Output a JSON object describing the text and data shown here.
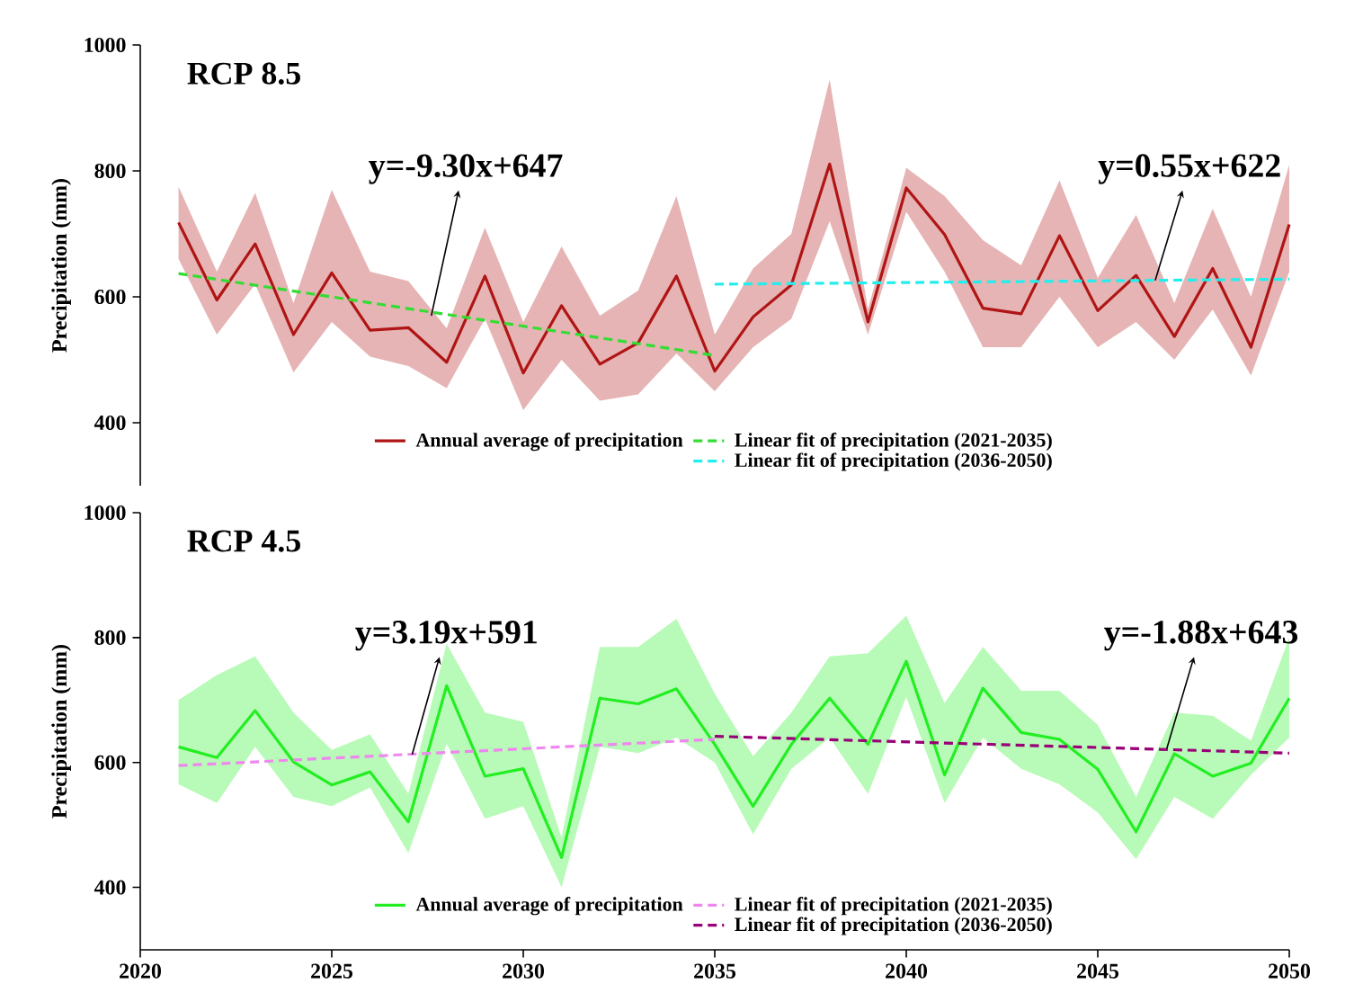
{
  "chart_data": [
    {
      "type": "line",
      "title": "RCP 8.5",
      "ylabel": "Precipitation (mm)",
      "xlim": [
        2020,
        2050
      ],
      "xticks": [
        2020,
        2025,
        2030,
        2035,
        2040,
        2045,
        2050
      ],
      "ylim": [
        300,
        1000
      ],
      "yticks": [
        400,
        600,
        800,
        1000
      ],
      "tick_labels": "y",
      "legend": "bottom",
      "x": [
        2021,
        2022,
        2023,
        2024,
        2025,
        2026,
        2027,
        2028,
        2029,
        2030,
        2031,
        2032,
        2033,
        2034,
        2035,
        2036,
        2037,
        2038,
        2039,
        2040,
        2041,
        2042,
        2043,
        2044,
        2045,
        2046,
        2047,
        2048,
        2049,
        2050
      ],
      "series": [
        {
          "name": "Annual average of precipitation",
          "color": "#b01515",
          "line_style": "solid",
          "values": [
            718,
            595,
            684,
            540,
            638,
            547,
            551,
            496,
            633,
            479,
            586,
            493,
            527,
            633,
            482,
            568,
            619,
            811,
            560,
            773,
            699,
            582,
            573,
            697,
            578,
            634,
            537,
            645,
            520,
            715
          ],
          "upper": [
            775,
            640,
            765,
            590,
            770,
            640,
            625,
            550,
            710,
            560,
            680,
            570,
            610,
            760,
            540,
            645,
            700,
            945,
            580,
            805,
            760,
            690,
            650,
            785,
            630,
            730,
            590,
            740,
            600,
            810
          ],
          "lower": [
            660,
            540,
            620,
            480,
            560,
            505,
            490,
            455,
            565,
            420,
            500,
            435,
            445,
            510,
            450,
            520,
            565,
            720,
            540,
            735,
            640,
            520,
            520,
            600,
            520,
            560,
            500,
            580,
            475,
            640
          ]
        },
        {
          "name": "Linear fit of precipitation (2021-2035)",
          "color": "#33dd33",
          "line_style": "dashed",
          "x": [
            2021,
            2035
          ],
          "values": [
            637,
            507
          ]
        },
        {
          "name": "Linear fit of precipitation (2036-2050)",
          "color": "#22eeee",
          "line_style": "dashed",
          "x": [
            2035,
            2050
          ],
          "values": [
            620,
            628
          ]
        }
      ],
      "annotations": [
        {
          "text": "y=-9.30x+647",
          "x": 2027.6,
          "y": 570
        },
        {
          "text": "y=0.55x+622",
          "x": 2046.5,
          "y": 626
        }
      ]
    },
    {
      "type": "line",
      "title": "RCP 4.5",
      "ylabel": "Precipitation (mm)",
      "xlim": [
        2020,
        2050
      ],
      "xticks": [
        2020,
        2025,
        2030,
        2035,
        2040,
        2045,
        2050
      ],
      "ylim": [
        300,
        1000
      ],
      "yticks": [
        400,
        600,
        800,
        1000
      ],
      "legend": "bottom",
      "x": [
        2021,
        2022,
        2023,
        2024,
        2025,
        2026,
        2027,
        2028,
        2029,
        2030,
        2031,
        2032,
        2033,
        2034,
        2035,
        2036,
        2037,
        2038,
        2039,
        2040,
        2041,
        2042,
        2043,
        2044,
        2045,
        2046,
        2047,
        2048,
        2049,
        2050
      ],
      "series": [
        {
          "name": "Annual average of precipitation",
          "color": "#22ee22",
          "line_style": "solid",
          "values": [
            625,
            608,
            683,
            601,
            564,
            585,
            505,
            723,
            578,
            590,
            448,
            703,
            694,
            718,
            629,
            530,
            629,
            703,
            629,
            762,
            580,
            719,
            648,
            637,
            589,
            489,
            614,
            578,
            599,
            703
          ],
          "upper": [
            700,
            740,
            770,
            680,
            620,
            645,
            550,
            790,
            680,
            665,
            480,
            785,
            785,
            830,
            710,
            610,
            680,
            770,
            775,
            835,
            695,
            785,
            715,
            715,
            660,
            545,
            680,
            675,
            635,
            800
          ],
          "lower": [
            565,
            535,
            625,
            545,
            530,
            560,
            455,
            630,
            510,
            530,
            400,
            625,
            615,
            640,
            600,
            485,
            590,
            640,
            550,
            705,
            535,
            640,
            590,
            565,
            520,
            445,
            545,
            510,
            580,
            640
          ]
        },
        {
          "name": "Linear fit of precipitation (2021-2035)",
          "color": "#ee88ee",
          "line_style": "dashed",
          "x": [
            2021,
            2035
          ],
          "values": [
            595,
            637
          ]
        },
        {
          "name": "Linear fit of precipitation (2036-2050)",
          "color": "#990077",
          "line_style": "dashed",
          "x": [
            2035,
            2050
          ],
          "values": [
            642,
            615
          ]
        }
      ],
      "annotations": [
        {
          "text": "y=3.19x+591",
          "x": 2027.1,
          "y": 613
        },
        {
          "text": "y=-1.88x+643",
          "x": 2046.8,
          "y": 622
        }
      ]
    }
  ]
}
